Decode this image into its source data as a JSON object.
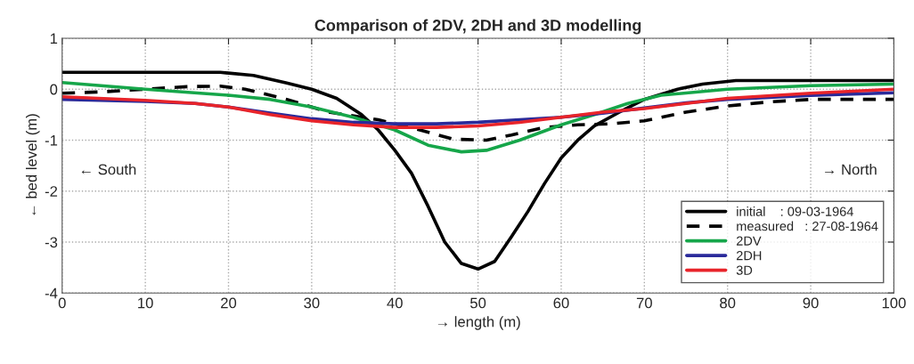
{
  "chart_data": {
    "type": "line",
    "title": "Comparison of 2DV, 2DH and 3D modelling",
    "xlabel": "→ length (m)",
    "ylabel": "← bed level (m)",
    "annotations": [
      "← South",
      "→ North"
    ],
    "xlim": [
      0,
      100
    ],
    "xticks": [
      0,
      10,
      20,
      30,
      40,
      50,
      60,
      70,
      80,
      90,
      100
    ],
    "ylim": [
      -4,
      1
    ],
    "yticks": [
      -4,
      -3,
      -2,
      -1,
      0,
      1
    ],
    "grid": true,
    "legend": "bottom right",
    "series": [
      {
        "name": "initial    : 09-03-1964",
        "color": "#000000",
        "line_style": "solid",
        "x": [
          0,
          19,
          23,
          27,
          30,
          33,
          36,
          38,
          40,
          42,
          44,
          46,
          48,
          50,
          52,
          54,
          56,
          58,
          60,
          62,
          64,
          67,
          70,
          74,
          77,
          81,
          100
        ],
        "values": [
          0.33,
          0.33,
          0.27,
          0.12,
          0,
          -0.18,
          -0.5,
          -0.8,
          -1.2,
          -1.65,
          -2.3,
          -3.0,
          -3.42,
          -3.53,
          -3.38,
          -2.9,
          -2.4,
          -1.85,
          -1.35,
          -1.0,
          -0.72,
          -0.45,
          -0.2,
          0.0,
          0.1,
          0.17,
          0.17
        ]
      },
      {
        "name": "measured   : 27-08-1964",
        "color": "#000000",
        "line_style": "dashed",
        "x": [
          0,
          5,
          10,
          15,
          19,
          22,
          27,
          32,
          38,
          43,
          47,
          51,
          54,
          58,
          62,
          66,
          70,
          75,
          80,
          85,
          90,
          100
        ],
        "values": [
          -0.08,
          -0.05,
          0.0,
          0.05,
          0.06,
          0.0,
          -0.2,
          -0.45,
          -0.6,
          -0.8,
          -0.98,
          -1.0,
          -0.9,
          -0.75,
          -0.7,
          -0.68,
          -0.62,
          -0.45,
          -0.33,
          -0.25,
          -0.2,
          -0.2
        ]
      },
      {
        "name": "2DV",
        "color": "#16a64a",
        "line_style": "solid",
        "x": [
          0,
          10,
          20,
          25,
          30,
          35,
          40,
          44,
          48,
          51,
          55,
          60,
          64,
          68,
          72,
          80,
          90,
          100
        ],
        "values": [
          0.13,
          0.0,
          -0.12,
          -0.2,
          -0.35,
          -0.55,
          -0.8,
          -1.1,
          -1.23,
          -1.2,
          -1.0,
          -0.7,
          -0.5,
          -0.28,
          -0.12,
          0.0,
          0.07,
          0.1
        ]
      },
      {
        "name": "2DH",
        "color": "#2a2a9a",
        "line_style": "solid",
        "x": [
          0,
          10,
          16,
          20,
          25,
          30,
          35,
          40,
          45,
          50,
          55,
          60,
          65,
          70,
          75,
          80,
          90,
          100
        ],
        "values": [
          -0.2,
          -0.24,
          -0.28,
          -0.35,
          -0.47,
          -0.58,
          -0.65,
          -0.68,
          -0.68,
          -0.65,
          -0.6,
          -0.55,
          -0.47,
          -0.37,
          -0.27,
          -0.2,
          -0.12,
          -0.07
        ]
      },
      {
        "name": "3D",
        "color": "#e8242a",
        "line_style": "solid",
        "x": [
          0,
          10,
          16,
          20,
          25,
          30,
          35,
          40,
          45,
          50,
          55,
          60,
          65,
          70,
          75,
          80,
          90,
          100
        ],
        "values": [
          -0.15,
          -0.22,
          -0.28,
          -0.35,
          -0.5,
          -0.62,
          -0.7,
          -0.75,
          -0.75,
          -0.72,
          -0.65,
          -0.55,
          -0.45,
          -0.38,
          -0.28,
          -0.18,
          -0.08,
          0.0
        ]
      }
    ]
  }
}
